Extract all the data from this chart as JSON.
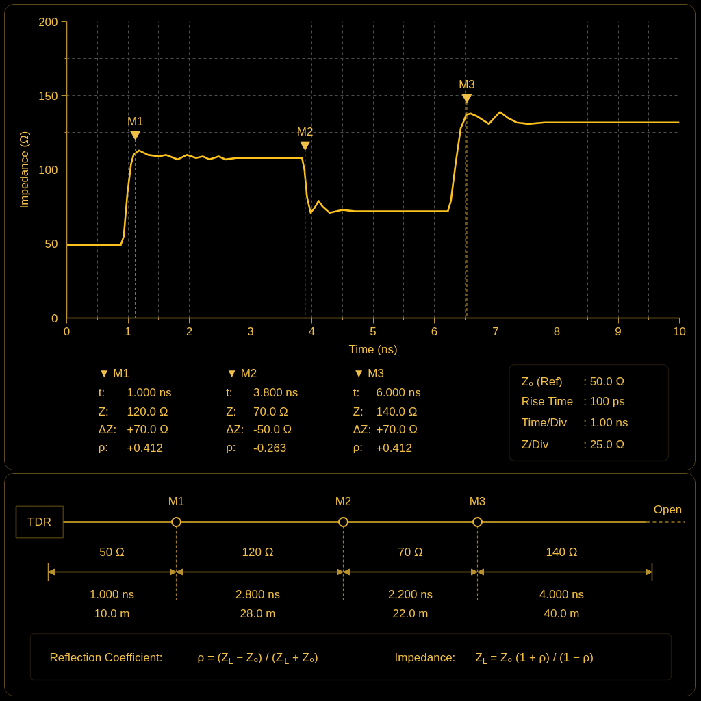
{
  "chart_data": {
    "type": "line",
    "xlabel": "Time (ns)",
    "ylabel": "Impedance (Ω)",
    "color": "#fcc21b",
    "x": [
      0,
      0.5,
      0.88,
      0.93,
      0.99,
      1.05,
      1.09,
      1.18,
      1.33,
      1.51,
      1.62,
      1.81,
      1.96,
      2.11,
      2.22,
      2.33,
      2.48,
      2.59,
      2.77,
      3.0,
      3.4,
      3.84,
      3.88,
      3.92,
      3.98,
      4.04,
      4.11,
      4.18,
      4.29,
      4.5,
      4.7,
      5.0,
      5.5,
      6.0,
      6.22,
      6.27,
      6.35,
      6.43,
      6.52,
      6.59,
      6.7,
      6.89,
      6.98,
      7.07,
      7.2,
      7.34,
      7.53,
      7.8,
      8.2,
      8.6,
      9.0,
      9.5,
      10.0
    ],
    "values": [
      49,
      49,
      49,
      55,
      84,
      104,
      110,
      113,
      110,
      109,
      110,
      107,
      110,
      108,
      109,
      107,
      109,
      107,
      108,
      108,
      108,
      108,
      100,
      82,
      71,
      74,
      79,
      75,
      71,
      73,
      72,
      72,
      72,
      72,
      72,
      79,
      105,
      128,
      137,
      138,
      136,
      131,
      135,
      139,
      135,
      132,
      131,
      132,
      132,
      132,
      132,
      132,
      132
    ],
    "xlim": [
      0,
      10
    ],
    "ylim": [
      0,
      200
    ],
    "xticks": [
      0,
      {
        "value": 0.5,
        "label": null
      },
      1,
      {
        "value": 1.5,
        "label": null
      },
      2,
      {
        "value": 2.5,
        "label": null
      },
      3,
      {
        "value": 3.5,
        "label": null
      },
      4,
      {
        "value": 4.5,
        "label": null
      },
      5,
      {
        "value": 5.5,
        "label": null
      },
      6,
      {
        "value": 6.5,
        "label": null
      },
      7,
      {
        "value": 7.5,
        "label": null
      },
      8,
      {
        "value": 8.5,
        "label": null
      },
      9,
      {
        "value": 9.5,
        "label": null
      },
      10
    ],
    "yticks": [
      0,
      {
        "value": 25,
        "label": null
      },
      50,
      {
        "value": 75,
        "label": null
      },
      100,
      {
        "value": 125,
        "label": null
      },
      150,
      {
        "value": 175,
        "label": null
      },
      200
    ],
    "grid": true,
    "annotations": [
      {
        "text": "M1",
        "x": 1.12,
        "y": 124
      },
      {
        "text": "M2",
        "x": 3.89,
        "y": 117
      },
      {
        "text": "M3",
        "x": 6.53,
        "y": 149
      },
      "▼ M1",
      "t:",
      "1.000 ns",
      "Z:",
      "120.0 Ω",
      "ΔZ:",
      "+70.0 Ω",
      "ρ:",
      "+0.412",
      "▼ M2",
      "t:",
      "3.800 ns",
      "Z:",
      "70.0 Ω",
      "ΔZ:",
      "-50.0 Ω",
      "ρ:",
      "-0.263",
      "▼ M3",
      "t:",
      "6.000 ns",
      "Z:",
      "140.0 Ω",
      "ΔZ:",
      "+70.0 Ω",
      "ρ:",
      "+0.412",
      "Z₀ (Ref)",
      ": 50.0 Ω",
      "Rise Time",
      ": 100 ps",
      "Time/Div",
      ": 1.00 ns",
      "Z/Div",
      ": 25.0 Ω",
      "TDR",
      "M1",
      "M2",
      "M3",
      "Open",
      "50 Ω",
      "120 Ω",
      "70 Ω",
      "140 Ω",
      "1.000 ns",
      "10.0 m",
      "2.800 ns",
      "28.0 m",
      "2.200 ns",
      "22.0 m",
      "4.000 ns",
      "40.0 m",
      "Reflection Coefficient:",
      "ρ = (Z$_{L}$ − Z₀) / (Z$_{L}$ + Z₀)",
      "Impedance:",
      "Z$_{L}$ = Z₀ (1 + ρ) / (1 − ρ)"
    ]
  }
}
